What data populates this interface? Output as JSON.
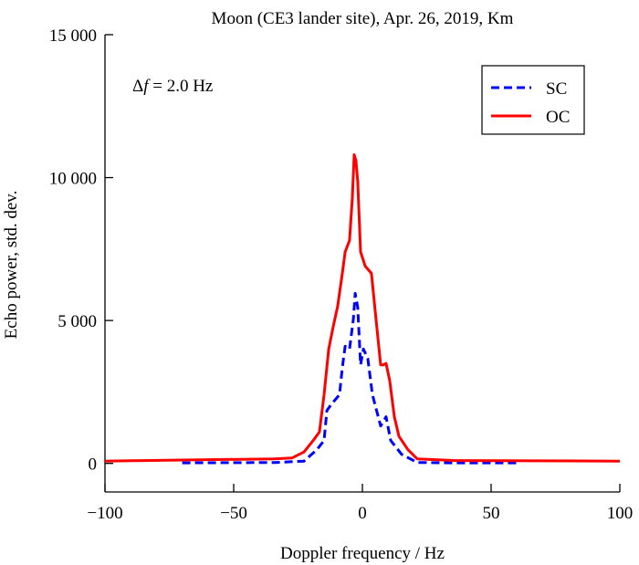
{
  "chart_data": {
    "type": "line",
    "title": "Moon (CE3 lander site), Apr. 26, 2019, Km",
    "xlabel": "Doppler frequency / Hz",
    "ylabel": "Echo power, std. dev.",
    "xlim": [
      -100,
      100
    ],
    "ylim": [
      -1000,
      15000
    ],
    "xticks": [
      -100,
      -50,
      0,
      50,
      100
    ],
    "xtick_labels": [
      "−100",
      "−50",
      "0",
      "50",
      "100"
    ],
    "yticks": [
      0,
      5000,
      10000,
      15000
    ],
    "ytick_labels": [
      "0",
      "5 000",
      "10 000",
      "15 000"
    ],
    "annotation": {
      "prefix": "Δ",
      "var": "f",
      "text": " = 2.0 Hz"
    },
    "legend_position": "top-right",
    "grid": false,
    "series": [
      {
        "name": "SC",
        "color": "#0000ff",
        "style": "dashed",
        "x": [
          -70,
          -34,
          -22.7,
          -17.7,
          -14.9,
          -13.8,
          -12,
          -8.9,
          -7.8,
          -6.7,
          -5,
          -3.5,
          -2.8,
          -1.8,
          -0.7,
          0.4,
          2.1,
          3.9,
          7.1,
          9.2,
          11,
          15.2,
          21.3,
          35,
          60
        ],
        "y": [
          20,
          30,
          80,
          480,
          800,
          1850,
          2080,
          2400,
          3350,
          4100,
          4000,
          5050,
          5950,
          5450,
          3450,
          4000,
          3670,
          2400,
          1310,
          1630,
          800,
          320,
          30,
          20,
          20
        ]
      },
      {
        "name": "OC",
        "color": "#ff0000",
        "style": "solid",
        "x": [
          -100,
          -34.4,
          -27.3,
          -22.7,
          -19.1,
          -16.7,
          -14.9,
          -13.1,
          -11.3,
          -9.6,
          -7.8,
          -6.7,
          -5,
          -3.9,
          -3.2,
          -2.5,
          -1.8,
          -0.7,
          1.1,
          3.5,
          5.3,
          7.1,
          8.2,
          9.2,
          10.6,
          12.4,
          14.2,
          17.7,
          21.3,
          36.5,
          100
        ],
        "y": [
          80,
          160,
          190,
          400,
          800,
          1100,
          2400,
          4000,
          4800,
          5500,
          6650,
          7400,
          7800,
          9300,
          10800,
          10600,
          9850,
          7400,
          6900,
          6650,
          5050,
          3450,
          3450,
          3500,
          2900,
          1630,
          950,
          480,
          160,
          100,
          80
        ]
      }
    ]
  }
}
